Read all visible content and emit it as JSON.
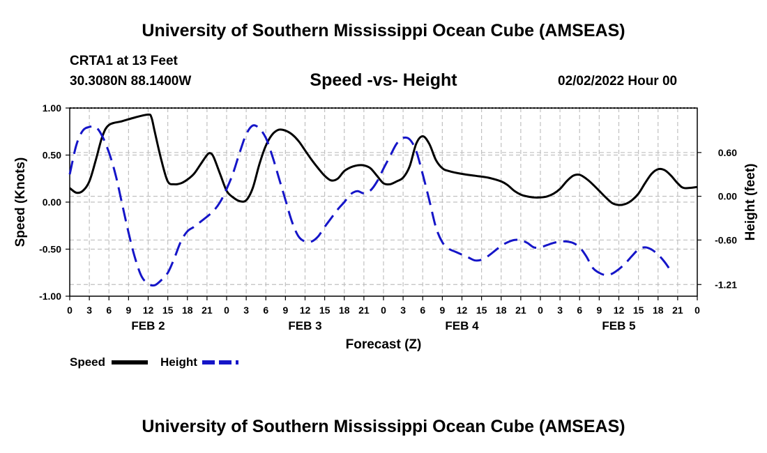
{
  "header": {
    "title": "University of Southern Mississippi Ocean Cube (AMSEAS)",
    "station": "CRTA1 at 13 Feet",
    "coordinates": "30.3080N  88.1400W",
    "subtitle": "Speed -vs- Height",
    "datetime": "02/02/2022 Hour 00"
  },
  "footer": {
    "title": "University of Southern Mississippi Ocean Cube (AMSEAS)"
  },
  "colors": {
    "speed": "#000000",
    "height": "#1515c8",
    "grid": "#c0c0c0"
  },
  "chart_data": {
    "type": "line",
    "xlabel": "Forecast (Z)",
    "ylabel_left": "Speed (Knots)",
    "ylabel_right": "Height (feet)",
    "x_range_hours": [
      0,
      96
    ],
    "xtick_step_hours": 3,
    "x_tick_labels": [
      "0",
      "3",
      "6",
      "9",
      "12",
      "15",
      "18",
      "21",
      "0",
      "3",
      "6",
      "9",
      "12",
      "15",
      "18",
      "21",
      "0",
      "3",
      "6",
      "9",
      "12",
      "15",
      "18",
      "21",
      "0",
      "3",
      "6",
      "9",
      "12",
      "15",
      "18",
      "21",
      "0"
    ],
    "day_labels": [
      {
        "label": "FEB 2",
        "hour": 12
      },
      {
        "label": "FEB 3",
        "hour": 36
      },
      {
        "label": "FEB 4",
        "hour": 60
      },
      {
        "label": "FEB 5",
        "hour": 84
      }
    ],
    "left_axis": {
      "range": [
        -1.0,
        1.0
      ],
      "ticks": [
        1.0,
        0.5,
        0.0,
        -0.5,
        -1.0
      ],
      "tick_labels": [
        "1.00",
        "0.50",
        "0.00",
        "-0.50",
        "-1.00"
      ]
    },
    "right_axis": {
      "range": [
        -1.37,
        1.21
      ],
      "ticks": [
        0.6,
        0.0,
        -0.6,
        -1.21
      ],
      "tick_labels": [
        "0.60",
        "0.00",
        "-0.60",
        "-1.21"
      ]
    },
    "grid": true,
    "legend": {
      "placement": "bottom-left",
      "entries": [
        "Speed",
        "Height"
      ]
    },
    "series": [
      {
        "name": "Speed",
        "axis": "left",
        "style": "solid",
        "points": [
          [
            0,
            0.15
          ],
          [
            1,
            0.1
          ],
          [
            2,
            0.12
          ],
          [
            3,
            0.22
          ],
          [
            4,
            0.45
          ],
          [
            5,
            0.7
          ],
          [
            6,
            0.82
          ],
          [
            8,
            0.86
          ],
          [
            10,
            0.9
          ],
          [
            12,
            0.93
          ],
          [
            12.5,
            0.9
          ],
          [
            13,
            0.75
          ],
          [
            14,
            0.45
          ],
          [
            15,
            0.22
          ],
          [
            16,
            0.19
          ],
          [
            17,
            0.2
          ],
          [
            18,
            0.24
          ],
          [
            19,
            0.3
          ],
          [
            20,
            0.4
          ],
          [
            21,
            0.5
          ],
          [
            21.5,
            0.52
          ],
          [
            22,
            0.48
          ],
          [
            23,
            0.3
          ],
          [
            24,
            0.12
          ],
          [
            25,
            0.05
          ],
          [
            26,
            0.01
          ],
          [
            27,
            0.02
          ],
          [
            28,
            0.15
          ],
          [
            29,
            0.4
          ],
          [
            30,
            0.6
          ],
          [
            31,
            0.72
          ],
          [
            32,
            0.77
          ],
          [
            33,
            0.76
          ],
          [
            34,
            0.72
          ],
          [
            35,
            0.65
          ],
          [
            36,
            0.55
          ],
          [
            37,
            0.45
          ],
          [
            38,
            0.36
          ],
          [
            39,
            0.28
          ],
          [
            40,
            0.23
          ],
          [
            41,
            0.25
          ],
          [
            42,
            0.33
          ],
          [
            43,
            0.37
          ],
          [
            44,
            0.39
          ],
          [
            45,
            0.39
          ],
          [
            46,
            0.36
          ],
          [
            47,
            0.28
          ],
          [
            48,
            0.2
          ],
          [
            49,
            0.19
          ],
          [
            50,
            0.22
          ],
          [
            51,
            0.26
          ],
          [
            52,
            0.38
          ],
          [
            53,
            0.62
          ],
          [
            54,
            0.7
          ],
          [
            55,
            0.62
          ],
          [
            56,
            0.45
          ],
          [
            57,
            0.36
          ],
          [
            58,
            0.33
          ],
          [
            60,
            0.3
          ],
          [
            62,
            0.28
          ],
          [
            64,
            0.26
          ],
          [
            66,
            0.22
          ],
          [
            67,
            0.18
          ],
          [
            68,
            0.12
          ],
          [
            69,
            0.08
          ],
          [
            70,
            0.06
          ],
          [
            71,
            0.05
          ],
          [
            72,
            0.05
          ],
          [
            73,
            0.06
          ],
          [
            74,
            0.09
          ],
          [
            75,
            0.14
          ],
          [
            76,
            0.22
          ],
          [
            77,
            0.28
          ],
          [
            78,
            0.29
          ],
          [
            79,
            0.25
          ],
          [
            80,
            0.19
          ],
          [
            81,
            0.12
          ],
          [
            82,
            0.05
          ],
          [
            83,
            -0.01
          ],
          [
            84,
            -0.03
          ],
          [
            85,
            -0.02
          ],
          [
            86,
            0.02
          ],
          [
            87,
            0.09
          ],
          [
            88,
            0.2
          ],
          [
            89,
            0.3
          ],
          [
            90,
            0.35
          ],
          [
            91,
            0.34
          ],
          [
            92,
            0.28
          ],
          [
            93,
            0.2
          ],
          [
            94,
            0.15
          ],
          [
            96,
            0.16
          ]
        ]
      },
      {
        "name": "Height",
        "axis": "right",
        "style": "dashed",
        "points": [
          [
            0,
            0.3
          ],
          [
            1,
            0.7
          ],
          [
            2,
            0.9
          ],
          [
            3,
            0.95
          ],
          [
            4,
            0.95
          ],
          [
            5,
            0.82
          ],
          [
            6,
            0.6
          ],
          [
            7,
            0.3
          ],
          [
            8,
            -0.1
          ],
          [
            9,
            -0.5
          ],
          [
            10,
            -0.85
          ],
          [
            11,
            -1.1
          ],
          [
            12,
            -1.2
          ],
          [
            13,
            -1.22
          ],
          [
            14,
            -1.15
          ],
          [
            15,
            -1.05
          ],
          [
            16,
            -0.85
          ],
          [
            17,
            -0.62
          ],
          [
            18,
            -0.48
          ],
          [
            19,
            -0.42
          ],
          [
            20,
            -0.35
          ],
          [
            21,
            -0.28
          ],
          [
            22,
            -0.2
          ],
          [
            23,
            -0.08
          ],
          [
            24,
            0.1
          ],
          [
            25,
            0.32
          ],
          [
            26,
            0.6
          ],
          [
            27,
            0.85
          ],
          [
            28,
            0.97
          ],
          [
            29,
            0.93
          ],
          [
            30,
            0.8
          ],
          [
            31,
            0.55
          ],
          [
            32,
            0.25
          ],
          [
            33,
            -0.05
          ],
          [
            34,
            -0.35
          ],
          [
            35,
            -0.55
          ],
          [
            36,
            -0.62
          ],
          [
            37,
            -0.62
          ],
          [
            38,
            -0.55
          ],
          [
            39,
            -0.42
          ],
          [
            40,
            -0.3
          ],
          [
            41,
            -0.18
          ],
          [
            42,
            -0.08
          ],
          [
            43,
            0.03
          ],
          [
            44,
            0.07
          ],
          [
            45,
            0.04
          ],
          [
            46,
            0.08
          ],
          [
            47,
            0.2
          ],
          [
            48,
            0.38
          ],
          [
            49,
            0.55
          ],
          [
            50,
            0.72
          ],
          [
            51,
            0.8
          ],
          [
            52,
            0.78
          ],
          [
            53,
            0.62
          ],
          [
            54,
            0.3
          ],
          [
            55,
            -0.05
          ],
          [
            56,
            -0.42
          ],
          [
            57,
            -0.63
          ],
          [
            58,
            -0.72
          ],
          [
            59,
            -0.76
          ],
          [
            60,
            -0.8
          ],
          [
            61,
            -0.84
          ],
          [
            62,
            -0.88
          ],
          [
            63,
            -0.87
          ],
          [
            64,
            -0.82
          ],
          [
            65,
            -0.75
          ],
          [
            66,
            -0.68
          ],
          [
            67,
            -0.63
          ],
          [
            68,
            -0.6
          ],
          [
            69,
            -0.6
          ],
          [
            70,
            -0.64
          ],
          [
            71,
            -0.7
          ],
          [
            72,
            -0.7
          ],
          [
            73,
            -0.67
          ],
          [
            74,
            -0.64
          ],
          [
            75,
            -0.62
          ],
          [
            76,
            -0.62
          ],
          [
            77,
            -0.64
          ],
          [
            78,
            -0.7
          ],
          [
            79,
            -0.82
          ],
          [
            80,
            -0.98
          ],
          [
            81,
            -1.05
          ],
          [
            82,
            -1.08
          ],
          [
            83,
            -1.06
          ],
          [
            84,
            -1.0
          ],
          [
            85,
            -0.92
          ],
          [
            86,
            -0.82
          ],
          [
            87,
            -0.73
          ],
          [
            88,
            -0.7
          ],
          [
            89,
            -0.73
          ],
          [
            90,
            -0.8
          ],
          [
            91,
            -0.9
          ],
          [
            92,
            -1.03
          ]
        ]
      }
    ]
  }
}
